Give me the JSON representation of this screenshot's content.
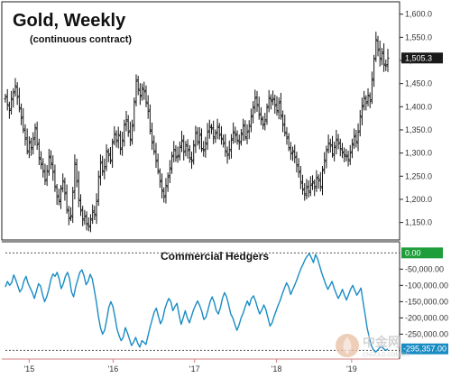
{
  "chart_data": [
    {
      "type": "bar",
      "subtype": "ohlc",
      "title": "Gold, Weekly",
      "subtitle": "(continuous contract)",
      "ylim": [
        1120,
        1615
      ],
      "yticks": [
        1150,
        1200,
        1250,
        1300,
        1350,
        1400,
        1450,
        1500,
        1550,
        1600
      ],
      "ytick_labels": [
        "1,150.0",
        "1,200.0",
        "1,250.0",
        "1,300.0",
        "1,350.0",
        "1,400.0",
        "1,450.0",
        "1,500.0",
        "1,550.0",
        "1,600.0"
      ],
      "last_value_label": "1,505.3",
      "last_value": 1505.3,
      "color": "#111111",
      "series": [
        {
          "values": [
            1420,
            1405,
            1392,
            1418,
            1430,
            1445,
            1420,
            1398,
            1375,
            1352,
            1330,
            1305,
            1322,
            1312,
            1330,
            1355,
            1318,
            1290,
            1275,
            1262,
            1240,
            1262,
            1290,
            1278,
            1258,
            1228,
            1205,
            1198,
            1222,
            1240,
            1212,
            1178,
            1158,
            1165,
            1215,
            1278,
            1238,
            1200,
            1175,
            1158,
            1162,
            1148,
            1140,
            1158,
            1172,
            1168,
            1195,
            1250,
            1278,
            1262,
            1268,
            1305,
            1295,
            1285,
            1322,
            1342,
            1325,
            1340,
            1308,
            1328,
            1360,
            1372,
            1345,
            1330,
            1358,
            1412,
            1455,
            1438,
            1422,
            1440,
            1432,
            1410,
            1390,
            1350,
            1322,
            1305,
            1282,
            1262,
            1238,
            1220,
            1205,
            1230,
            1248,
            1268,
            1292,
            1308,
            1290,
            1295,
            1312,
            1328,
            1302,
            1318,
            1305,
            1290,
            1282,
            1318,
            1342,
            1325,
            1338,
            1310,
            1305,
            1322,
            1345,
            1358,
            1352,
            1335,
            1342,
            1358,
            1338,
            1332,
            1320,
            1305,
            1295,
            1308,
            1328,
            1346,
            1338,
            1328,
            1322,
            1343,
            1358,
            1335,
            1345,
            1360,
            1378,
            1400,
            1418,
            1405,
            1382,
            1375,
            1360,
            1372,
            1398,
            1420,
            1412,
            1418,
            1402,
            1392,
            1408,
            1382,
            1360,
            1345,
            1332,
            1312,
            1298,
            1305,
            1290,
            1275,
            1258,
            1238,
            1220,
            1212,
            1225,
            1218,
            1230,
            1238,
            1225,
            1248,
            1240,
            1228,
            1262,
            1285,
            1305,
            1322,
            1315,
            1298,
            1312,
            1330,
            1320,
            1310,
            1300,
            1296,
            1292,
            1286,
            1300,
            1320,
            1335,
            1325,
            1345,
            1380,
            1400,
            1420,
            1408,
            1425,
            1412,
            1460,
            1502,
            1545,
            1522,
            1505,
            1515,
            1492,
            1488,
            1505
          ]
        }
      ]
    },
    {
      "type": "line",
      "title": "Commercial Hedgers",
      "ylim": [
        -310000,
        12000
      ],
      "yticks": [
        -50000,
        -100000,
        -150000,
        -200000,
        -250000
      ],
      "ytick_labels": [
        "-50,000.00",
        "-100,000.00",
        "-150,000.00",
        "-200,000.00",
        "-250,000.00"
      ],
      "zero_label": "0.00",
      "zero_color": "#1e9e3a",
      "last_value_label": "-295,357.00",
      "last_value": -295357,
      "reference_lines": [
        0,
        -300000
      ],
      "color": "#1a8cc4",
      "series": [
        {
          "values": [
            -105000,
            -88000,
            -100000,
            -92000,
            -68000,
            -83000,
            -102000,
            -120000,
            -110000,
            -86000,
            -72000,
            -95000,
            -108000,
            -122000,
            -140000,
            -118000,
            -95000,
            -102000,
            -130000,
            -150000,
            -135000,
            -112000,
            -82000,
            -65000,
            -72000,
            -60000,
            -80000,
            -110000,
            -95000,
            -72000,
            -60000,
            -78000,
            -120000,
            -135000,
            -105000,
            -82000,
            -60000,
            -52000,
            -70000,
            -98000,
            -88000,
            -66000,
            -80000,
            -115000,
            -150000,
            -195000,
            -230000,
            -250000,
            -238000,
            -205000,
            -168000,
            -150000,
            -165000,
            -198000,
            -235000,
            -255000,
            -270000,
            -260000,
            -230000,
            -245000,
            -265000,
            -285000,
            -275000,
            -260000,
            -278000,
            -290000,
            -270000,
            -275000,
            -282000,
            -255000,
            -228000,
            -205000,
            -182000,
            -170000,
            -195000,
            -218000,
            -205000,
            -175000,
            -155000,
            -140000,
            -150000,
            -178000,
            -165000,
            -155000,
            -190000,
            -220000,
            -200000,
            -178000,
            -200000,
            -215000,
            -195000,
            -175000,
            -160000,
            -148000,
            -162000,
            -180000,
            -205000,
            -198000,
            -175000,
            -150000,
            -135000,
            -152000,
            -178000,
            -188000,
            -168000,
            -140000,
            -122000,
            -135000,
            -160000,
            -188000,
            -200000,
            -220000,
            -238000,
            -222000,
            -200000,
            -185000,
            -165000,
            -148000,
            -162000,
            -140000,
            -132000,
            -148000,
            -170000,
            -188000,
            -176000,
            -160000,
            -175000,
            -200000,
            -225000,
            -215000,
            -195000,
            -178000,
            -160000,
            -145000,
            -125000,
            -108000,
            -92000,
            -105000,
            -128000,
            -112000,
            -98000,
            -82000,
            -65000,
            -48000,
            -35000,
            -20000,
            -10000,
            -2000,
            -15000,
            -30000,
            -5000,
            -18000,
            -40000,
            -62000,
            -80000,
            -98000,
            -112000,
            -100000,
            -88000,
            -108000,
            -125000,
            -140000,
            -128000,
            -112000,
            -130000,
            -145000,
            -128000,
            -112000,
            -100000,
            -115000,
            -130000,
            -120000,
            -108000,
            -150000,
            -190000,
            -232000,
            -260000,
            -285000,
            -298000,
            -305000,
            -300000,
            -292000,
            -288000,
            -295000,
            -300000,
            -295357
          ]
        }
      ]
    }
  ],
  "x_axis": {
    "labels": [
      "'15",
      "'16",
      "'17",
      "'18",
      "'19"
    ],
    "positions": [
      0.073,
      0.283,
      0.487,
      0.692,
      0.88
    ]
  },
  "colors": {
    "upper_tag": "#1a1a1a",
    "lower_tag": "#1a8cc4",
    "zero_tag": "#1e9e3a",
    "hedgers_line": "#1a8cc4",
    "price_bars": "#111111"
  },
  "watermark": {
    "title": "中金网",
    "subtitle": "CNGOLD.COM.CN",
    "icon": "flame-logo-icon"
  }
}
